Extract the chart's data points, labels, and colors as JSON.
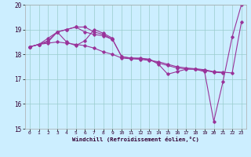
{
  "xlabel": "Windchill (Refroidissement éolien,°C)",
  "bg_color": "#cceeff",
  "line_color": "#993399",
  "grid_color": "#99cccc",
  "xlim": [
    -0.5,
    23.5
  ],
  "ylim": [
    15,
    20
  ],
  "xticks": [
    0,
    1,
    2,
    3,
    4,
    5,
    6,
    7,
    8,
    9,
    10,
    11,
    12,
    13,
    14,
    15,
    16,
    17,
    18,
    19,
    20,
    21,
    22,
    23
  ],
  "yticks": [
    15,
    16,
    17,
    18,
    19,
    20
  ],
  "line1_x": [
    0,
    1,
    2,
    3,
    4,
    5,
    6,
    7,
    8,
    9,
    10,
    11,
    12,
    13,
    14,
    15,
    16,
    17,
    18,
    19,
    20,
    21,
    22,
    23
  ],
  "line1_y": [
    18.3,
    18.4,
    18.5,
    18.9,
    19.0,
    19.1,
    19.1,
    18.9,
    18.8,
    18.6,
    17.9,
    17.85,
    17.85,
    17.8,
    17.6,
    17.2,
    17.3,
    17.4,
    17.4,
    17.3,
    15.3,
    16.9,
    18.7,
    20.0
  ],
  "line2_x": [
    0,
    1,
    2,
    3,
    4,
    5,
    6,
    7,
    8,
    9,
    10,
    11,
    12,
    13,
    14,
    15,
    16,
    17,
    18,
    19,
    20,
    21,
    22,
    23
  ],
  "line2_y": [
    18.3,
    18.4,
    18.45,
    18.5,
    18.45,
    18.4,
    18.35,
    18.25,
    18.1,
    18.0,
    17.85,
    17.82,
    17.8,
    17.75,
    17.7,
    17.6,
    17.5,
    17.45,
    17.42,
    17.38,
    17.3,
    17.28,
    17.25,
    19.3
  ],
  "line3_x": [
    0,
    1,
    2,
    3,
    4,
    5,
    6,
    7,
    8,
    9,
    10,
    11,
    12,
    13,
    14,
    15,
    16,
    17,
    18,
    19,
    20,
    21
  ],
  "line3_y": [
    18.3,
    18.4,
    18.55,
    18.9,
    19.0,
    19.1,
    18.9,
    18.8,
    18.75,
    18.6,
    17.9,
    17.85,
    17.82,
    17.8,
    17.65,
    17.55,
    17.45,
    17.42,
    17.4,
    17.35,
    17.28,
    17.25
  ],
  "line4_x": [
    0,
    1,
    2,
    3,
    4,
    5,
    6,
    7,
    8,
    9
  ],
  "line4_y": [
    18.3,
    18.4,
    18.65,
    18.9,
    18.5,
    18.35,
    18.55,
    19.0,
    18.85,
    18.65
  ]
}
